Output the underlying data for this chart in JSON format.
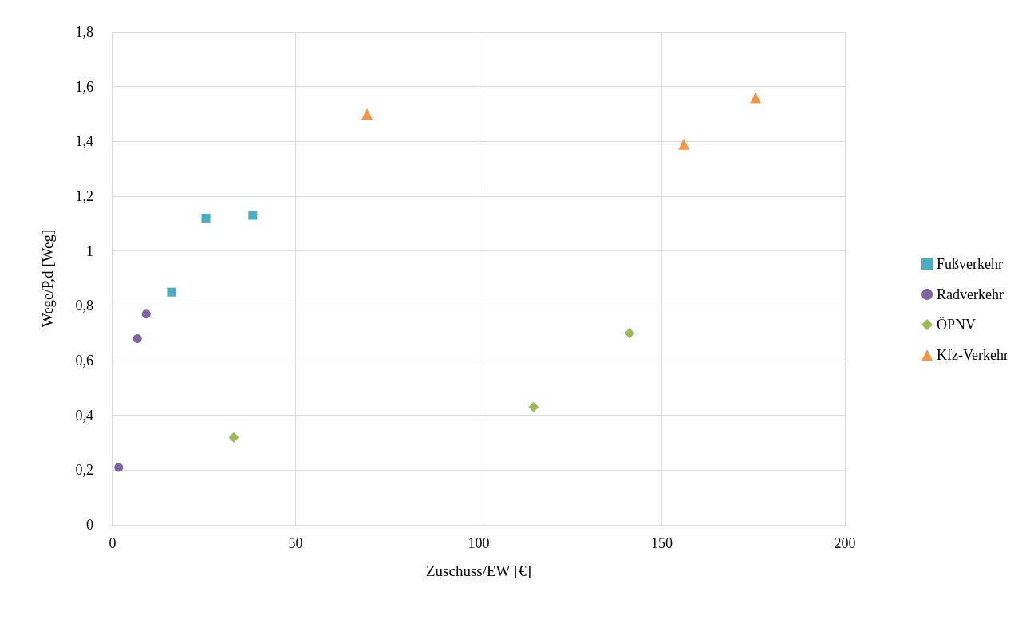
{
  "chart_data": {
    "type": "scatter",
    "xlabel": "Zuschuss/EW [€]",
    "ylabel": "Wege/P,d [Weg]",
    "xlim": [
      0,
      200
    ],
    "xticks": [
      0,
      50,
      100,
      150,
      200
    ],
    "ylim": [
      0,
      1.8
    ],
    "yticks": [
      0,
      {
        "value": 0.2,
        "label": "0,2"
      },
      {
        "value": 0.4,
        "label": "0,4"
      },
      {
        "value": 0.6,
        "label": "0,6"
      },
      {
        "value": 0.8,
        "label": "0,8"
      },
      1,
      {
        "value": 1.2,
        "label": "1,2"
      },
      {
        "value": 1.4,
        "label": "1,4"
      },
      {
        "value": 1.6,
        "label": "1,6"
      },
      {
        "value": 1.8,
        "label": "1,8"
      }
    ],
    "grid": true,
    "legend": "right",
    "series": [
      {
        "name": "Fußverkehr",
        "color": "#4bacc6",
        "marker": "square",
        "x": [
          16.1,
          25.5,
          38.3
        ],
        "values": [
          0.85,
          1.12,
          1.13
        ]
      },
      {
        "name": "Radverkehr",
        "color": "#8064a2",
        "marker": "circle",
        "x": [
          1.7,
          6.8,
          9.2
        ],
        "values": [
          0.21,
          0.68,
          0.77
        ]
      },
      {
        "name": "ÖPNV",
        "color": "#9bbb59",
        "marker": "diamond",
        "x": [
          33.1,
          115,
          141.2
        ],
        "values": [
          0.32,
          0.43,
          0.7
        ]
      },
      {
        "name": "Kfz-Verkehr",
        "color": "#f79646",
        "marker": "triangle",
        "x": [
          69.5,
          156,
          175.6
        ],
        "values": [
          1.5,
          1.39,
          1.56
        ]
      }
    ]
  }
}
